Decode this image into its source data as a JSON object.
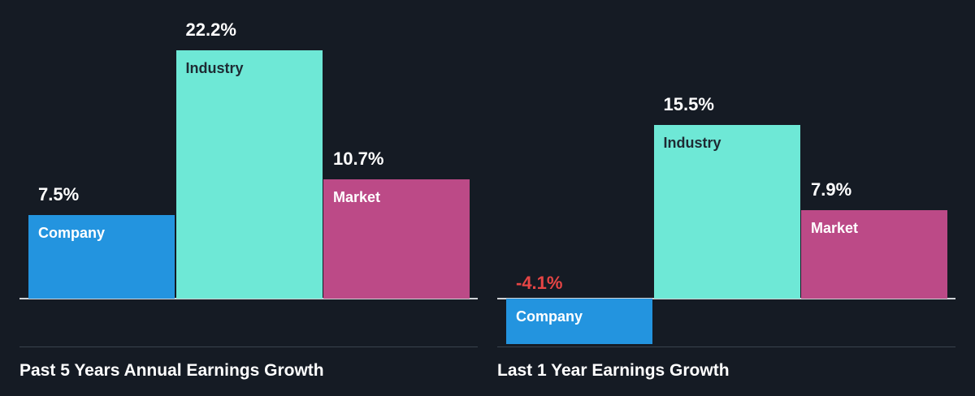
{
  "chart_data": [
    {
      "type": "bar",
      "title": "Past 5 Years Annual Earnings Growth",
      "categories": [
        "Company",
        "Industry",
        "Market"
      ],
      "values": [
        7.5,
        22.2,
        10.7
      ],
      "value_labels": [
        "7.5%",
        "22.2%",
        "10.7%"
      ],
      "unit": "%"
    },
    {
      "type": "bar",
      "title": "Last 1 Year Earnings Growth",
      "categories": [
        "Company",
        "Industry",
        "Market"
      ],
      "values": [
        -4.1,
        15.5,
        7.9
      ],
      "value_labels": [
        "-4.1%",
        "15.5%",
        "7.9%"
      ],
      "unit": "%"
    }
  ],
  "colors": {
    "Company": "#2394df",
    "Industry": "#6ee8d6",
    "Market": "#bc4a87",
    "negative": "#e64545",
    "background": "#151b24"
  }
}
